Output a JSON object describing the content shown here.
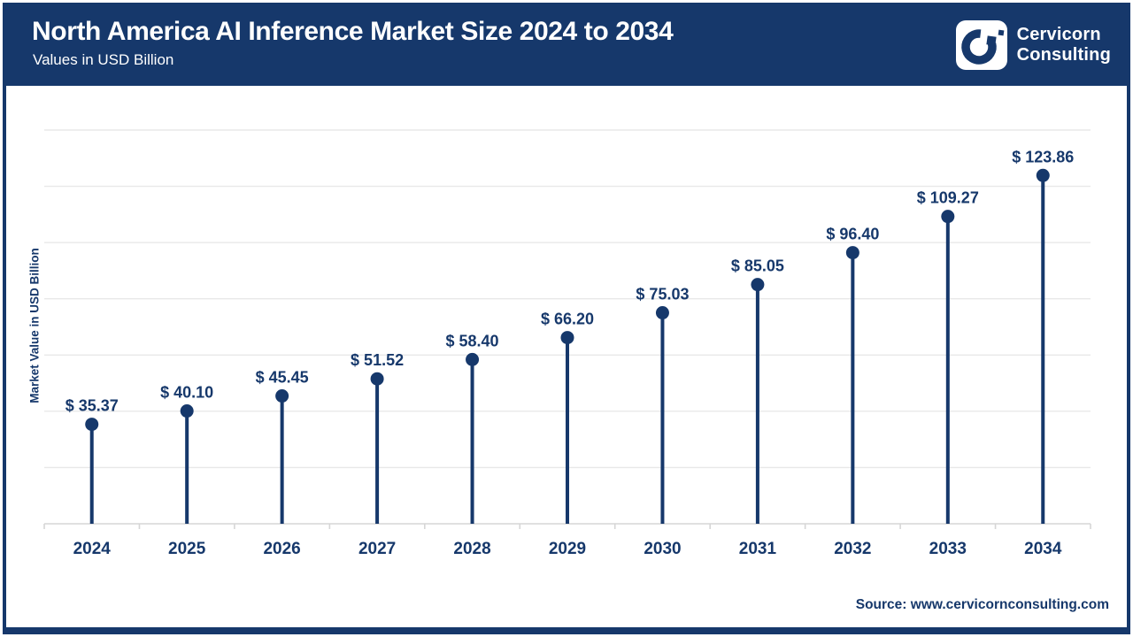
{
  "header": {
    "title": "North America AI Inference Market Size 2024 to 2034",
    "subtitle": "Values in USD Billion",
    "brand_line1": "Cervicorn",
    "brand_line2": "Consulting"
  },
  "chart_data": {
    "type": "scatter",
    "style": "lollipop",
    "title": "North America AI Inference Market Size 2024 to 2034",
    "categories": [
      "2024",
      "2025",
      "2026",
      "2027",
      "2028",
      "2029",
      "2030",
      "2031",
      "2032",
      "2033",
      "2034"
    ],
    "values": [
      35.37,
      40.1,
      45.45,
      51.52,
      58.4,
      66.2,
      75.03,
      85.05,
      96.4,
      109.27,
      123.86
    ],
    "value_labels": [
      "$ 35.37",
      "$ 40.10",
      "$ 45.45",
      "$ 51.52",
      "$ 58.40",
      "$ 66.20",
      "$ 75.03",
      "$ 85.05",
      "$ 96.40",
      "$ 109.27",
      "$ 123.86"
    ],
    "label_prefix": "$ ",
    "xlabel": "",
    "ylabel": "Market Value in USD Billion",
    "ylim": [
      0,
      140
    ],
    "grid_step": 20,
    "grid": "horizontal",
    "legend": "none",
    "colors": {
      "navy": "#16386b",
      "gridline": "#e8e8e8",
      "axis": "#d6d6d6",
      "background": "#ffffff"
    }
  },
  "footer": {
    "source": "Source: www.cervicornconsulting.com"
  }
}
